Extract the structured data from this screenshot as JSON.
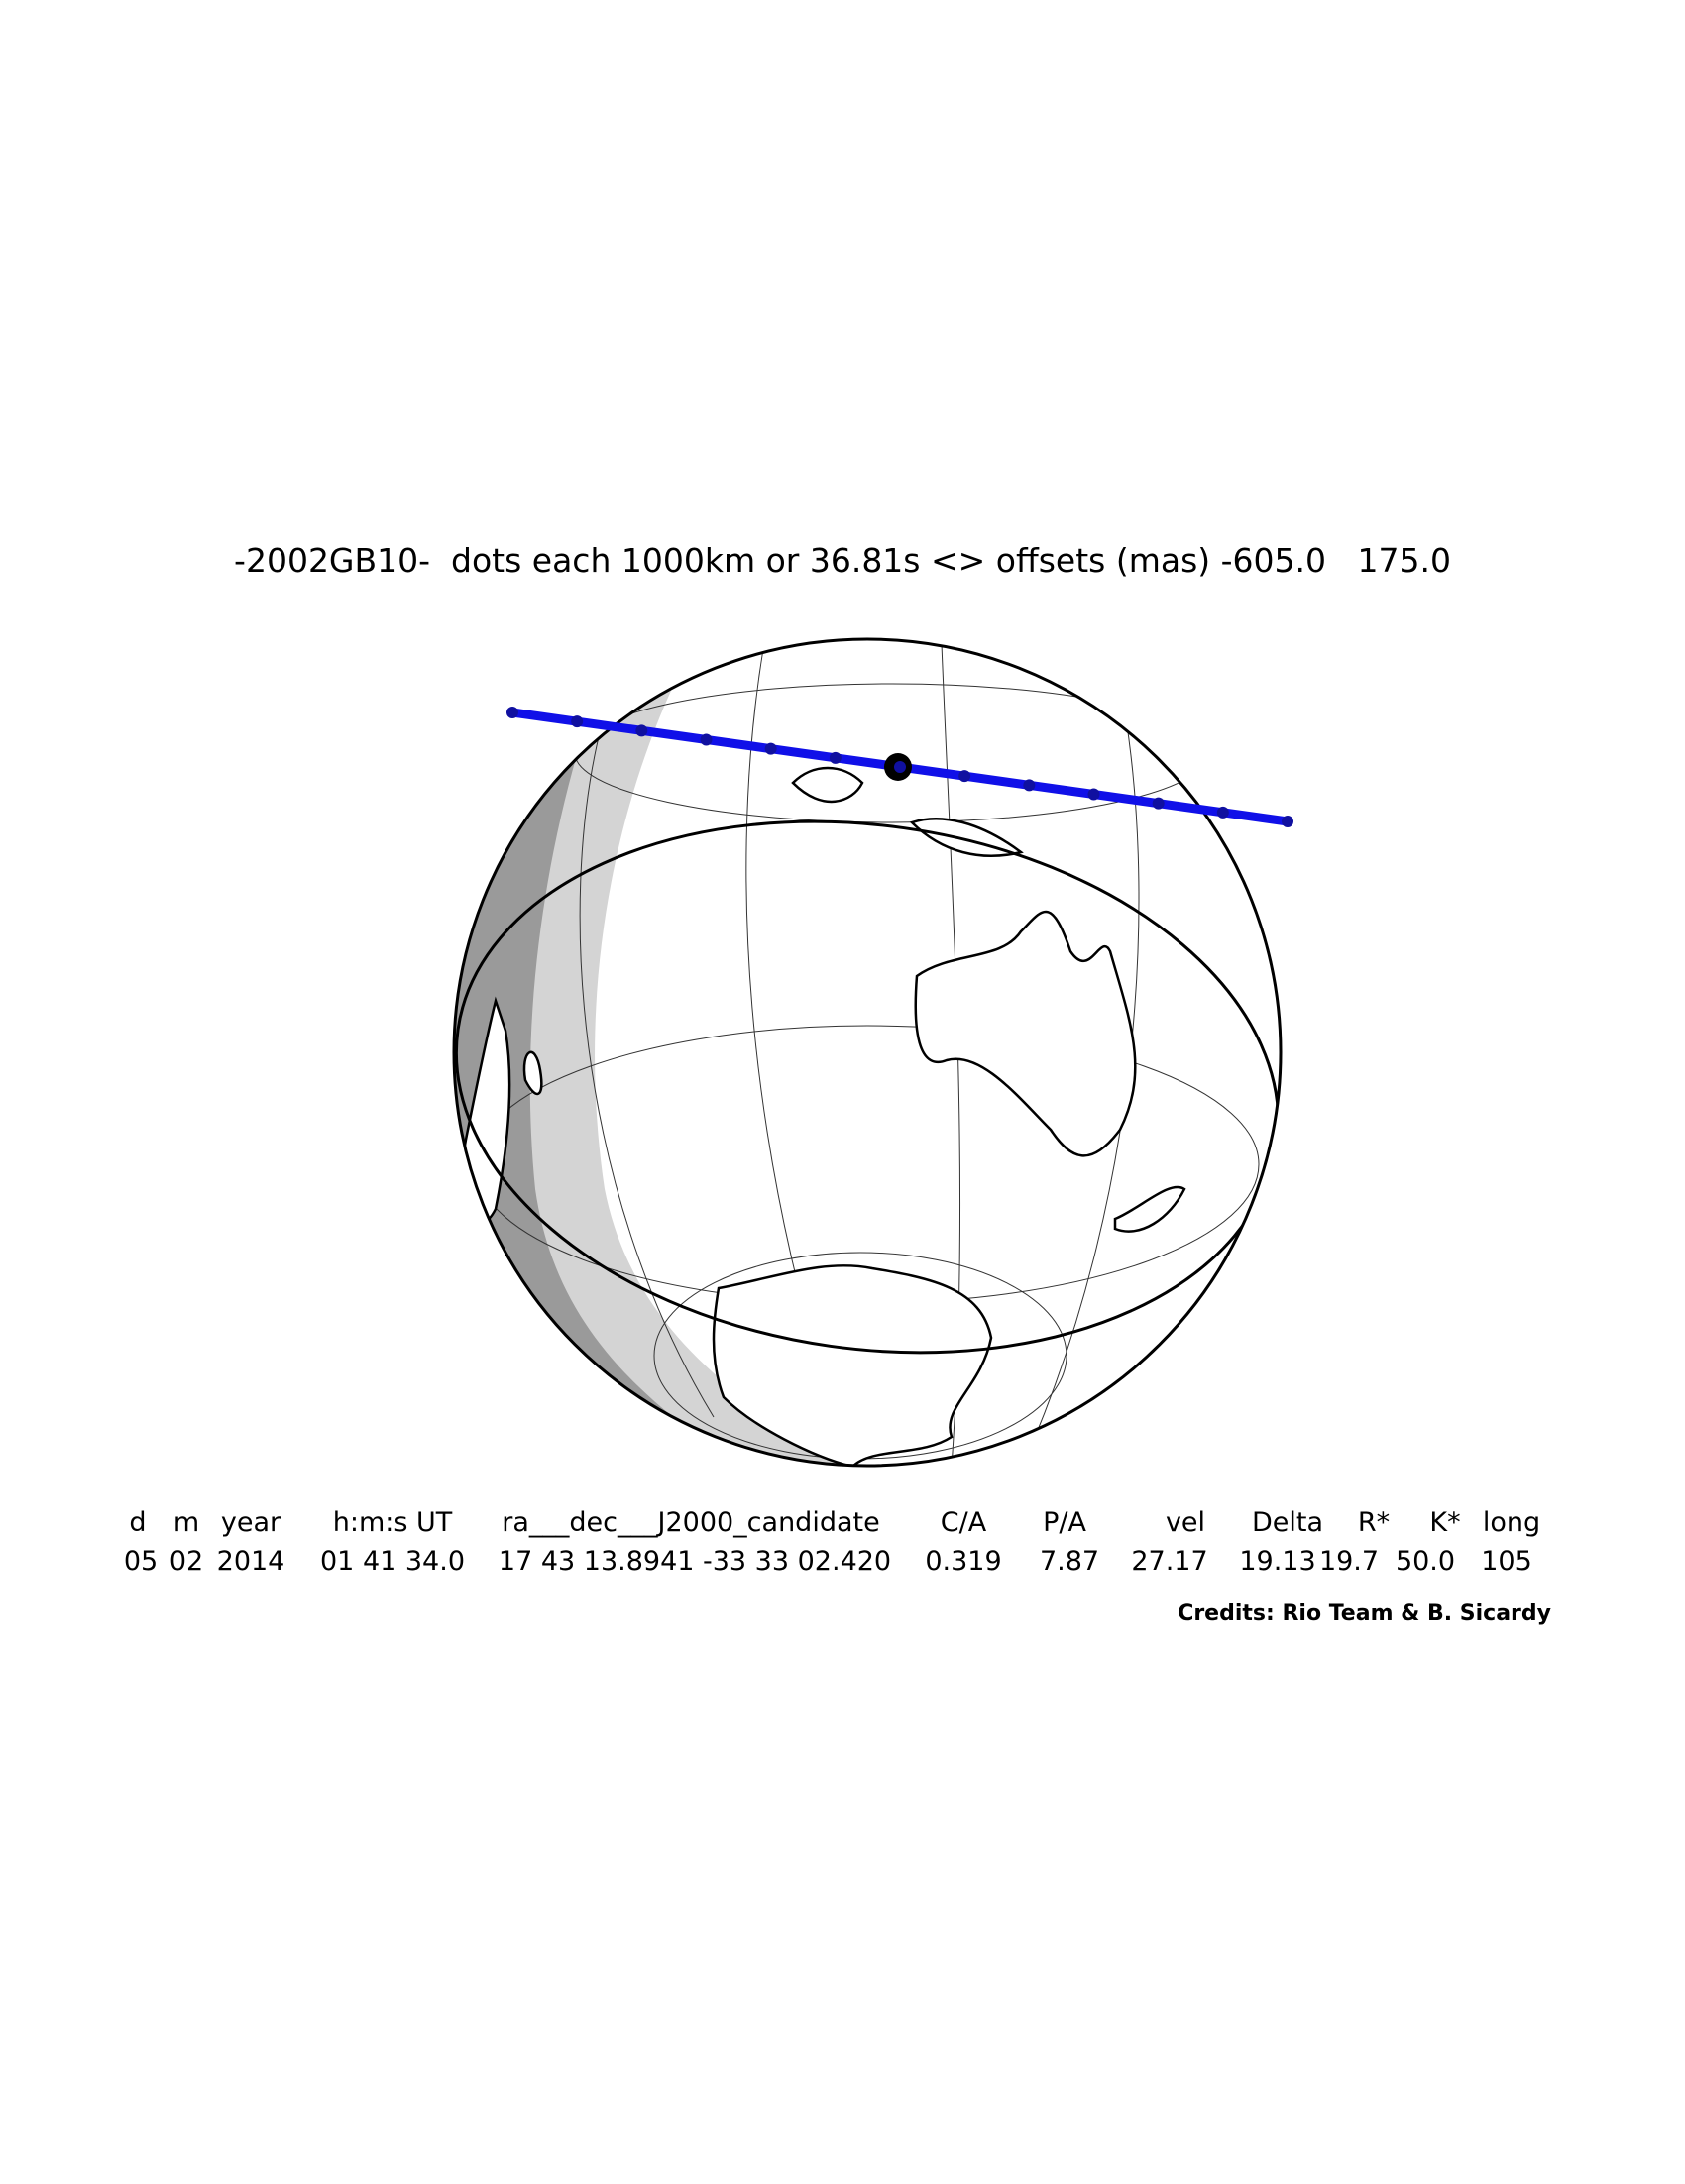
{
  "header": {
    "title": "-2002GB10-  dots each 1000km or 36.81s <> offsets (mas) -605.0   175.0"
  },
  "table": {
    "columns": [
      "d",
      "m",
      "year",
      "h:m:s UT",
      "ra___dec___J2000_candidate",
      "C/A",
      "P/A",
      "vel",
      "Delta",
      "R*",
      "K*",
      "long"
    ],
    "rows": [
      [
        "05",
        "02",
        "2014",
        "01 41 34.0",
        "17 43 13.8941 -33 33 02.420",
        "0.319",
        "7.87",
        "27.17",
        "19.13",
        "19.7",
        "50.0",
        "105"
      ]
    ]
  },
  "credits": "Credits: Rio Team & B. Sicardy"
}
